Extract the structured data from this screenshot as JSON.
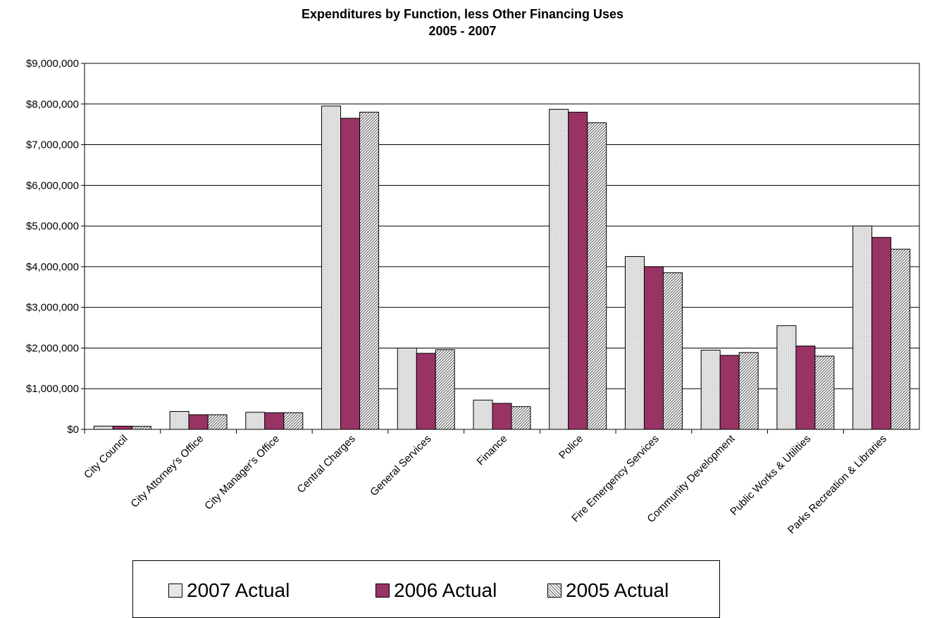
{
  "chart_data": {
    "type": "bar",
    "title": "Expenditures by Function, less Other Financing Uses",
    "subtitle": "2005 - 2007",
    "categories": [
      "City Council",
      "City Attorney's Office",
      "City Manager's Office",
      "Central Charges",
      "General Services",
      "Finance",
      "Police",
      "Fire Emergency Services",
      "Community Development",
      "Public Works & Utilities",
      "Parks Recreation & Libraries"
    ],
    "series": [
      {
        "name": "2007 Actual",
        "color": "#e6e6e6",
        "pattern": "dotted",
        "values": [
          80000,
          440000,
          420000,
          7950000,
          2000000,
          720000,
          7870000,
          4250000,
          1950000,
          2550000,
          5000000
        ]
      },
      {
        "name": "2006 Actual",
        "color": "#993366",
        "pattern": "solid",
        "values": [
          80000,
          360000,
          410000,
          7650000,
          1870000,
          640000,
          7800000,
          4000000,
          1820000,
          2050000,
          4720000
        ]
      },
      {
        "name": "2005 Actual",
        "color": "#ffffff",
        "pattern": "diagonal-hatch",
        "values": [
          75000,
          360000,
          410000,
          7800000,
          1960000,
          560000,
          7540000,
          3850000,
          1890000,
          1800000,
          4430000
        ]
      }
    ],
    "ylim": [
      0,
      9000000
    ],
    "ytick_step": 1000000,
    "yticks": [
      "$0",
      "$1,000,000",
      "$2,000,000",
      "$3,000,000",
      "$4,000,000",
      "$5,000,000",
      "$6,000,000",
      "$7,000,000",
      "$8,000,000",
      "$9,000,000"
    ],
    "grid": true,
    "legend_position": "bottom",
    "xlabel": "",
    "ylabel": ""
  }
}
